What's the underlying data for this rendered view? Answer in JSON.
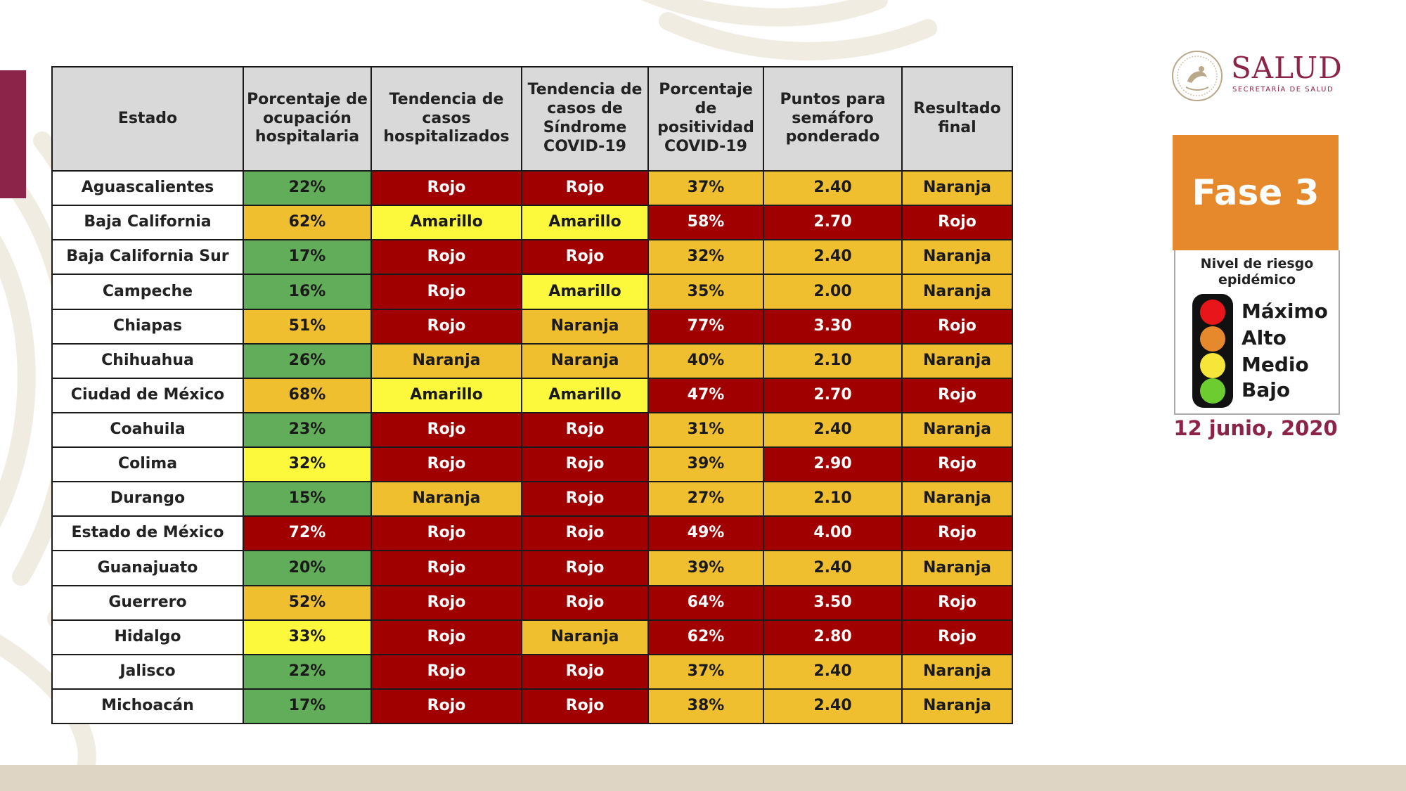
{
  "logo": {
    "title": "SALUD",
    "subtitle": "SECRETARÍA DE SALUD"
  },
  "phase": "Fase 3",
  "risk_panel": {
    "title": "Nivel de riesgo epidémico",
    "levels": [
      "Máximo",
      "Alto",
      "Medio",
      "Bajo"
    ],
    "colors": [
      "#e8161b",
      "#e6882c",
      "#f7e53a",
      "#6ccc30"
    ]
  },
  "date": "12 junio, 2020",
  "table": {
    "headers": [
      "Estado",
      "Porcentaje de ocupación hospitalaria",
      "Tendencia de casos hospitalizados",
      "Tendencia de casos de Síndrome COVID-19",
      "Porcentaje de positividad COVID-19",
      "Puntos para semáforo ponderado",
      "Resultado final"
    ],
    "colors": {
      "green": "#62ad59",
      "yellow": "#fcf83c",
      "orange": "#f0bf30",
      "red": "#a00000"
    },
    "rows": [
      {
        "estado": "Aguascalientes",
        "ocupacion": "22%",
        "c_ocu": "green",
        "hosp": "Rojo",
        "c_hosp": "red",
        "sind": "Rojo",
        "c_sind": "red",
        "posit": "37%",
        "c_pos": "orange",
        "puntos": "2.40",
        "c_pts": "orange",
        "final": "Naranja",
        "c_fin": "orange"
      },
      {
        "estado": "Baja California",
        "ocupacion": "62%",
        "c_ocu": "orange",
        "hosp": "Amarillo",
        "c_hosp": "yellow",
        "sind": "Amarillo",
        "c_sind": "yellow",
        "posit": "58%",
        "c_pos": "red",
        "puntos": "2.70",
        "c_pts": "red",
        "final": "Rojo",
        "c_fin": "red"
      },
      {
        "estado": "Baja California Sur",
        "ocupacion": "17%",
        "c_ocu": "green",
        "hosp": "Rojo",
        "c_hosp": "red",
        "sind": "Rojo",
        "c_sind": "red",
        "posit": "32%",
        "c_pos": "orange",
        "puntos": "2.40",
        "c_pts": "orange",
        "final": "Naranja",
        "c_fin": "orange"
      },
      {
        "estado": "Campeche",
        "ocupacion": "16%",
        "c_ocu": "green",
        "hosp": "Rojo",
        "c_hosp": "red",
        "sind": "Amarillo",
        "c_sind": "yellow",
        "posit": "35%",
        "c_pos": "orange",
        "puntos": "2.00",
        "c_pts": "orange",
        "final": "Naranja",
        "c_fin": "orange"
      },
      {
        "estado": "Chiapas",
        "ocupacion": "51%",
        "c_ocu": "orange",
        "hosp": "Rojo",
        "c_hosp": "red",
        "sind": "Naranja",
        "c_sind": "orange",
        "posit": "77%",
        "c_pos": "red",
        "puntos": "3.30",
        "c_pts": "red",
        "final": "Rojo",
        "c_fin": "red"
      },
      {
        "estado": "Chihuahua",
        "ocupacion": "26%",
        "c_ocu": "green",
        "hosp": "Naranja",
        "c_hosp": "orange",
        "sind": "Naranja",
        "c_sind": "orange",
        "posit": "40%",
        "c_pos": "orange",
        "puntos": "2.10",
        "c_pts": "orange",
        "final": "Naranja",
        "c_fin": "orange"
      },
      {
        "estado": "Ciudad de México",
        "ocupacion": "68%",
        "c_ocu": "orange",
        "hosp": "Amarillo",
        "c_hosp": "yellow",
        "sind": "Amarillo",
        "c_sind": "yellow",
        "posit": "47%",
        "c_pos": "red",
        "puntos": "2.70",
        "c_pts": "red",
        "final": "Rojo",
        "c_fin": "red"
      },
      {
        "estado": "Coahuila",
        "ocupacion": "23%",
        "c_ocu": "green",
        "hosp": "Rojo",
        "c_hosp": "red",
        "sind": "Rojo",
        "c_sind": "red",
        "posit": "31%",
        "c_pos": "orange",
        "puntos": "2.40",
        "c_pts": "orange",
        "final": "Naranja",
        "c_fin": "orange"
      },
      {
        "estado": "Colima",
        "ocupacion": "32%",
        "c_ocu": "yellow",
        "hosp": "Rojo",
        "c_hosp": "red",
        "sind": "Rojo",
        "c_sind": "red",
        "posit": "39%",
        "c_pos": "orange",
        "puntos": "2.90",
        "c_pts": "red",
        "final": "Rojo",
        "c_fin": "red"
      },
      {
        "estado": "Durango",
        "ocupacion": "15%",
        "c_ocu": "green",
        "hosp": "Naranja",
        "c_hosp": "orange",
        "sind": "Rojo",
        "c_sind": "red",
        "posit": "27%",
        "c_pos": "orange",
        "puntos": "2.10",
        "c_pts": "orange",
        "final": "Naranja",
        "c_fin": "orange"
      },
      {
        "estado": "Estado de México",
        "ocupacion": "72%",
        "c_ocu": "red",
        "hosp": "Rojo",
        "c_hosp": "red",
        "sind": "Rojo",
        "c_sind": "red",
        "posit": "49%",
        "c_pos": "red",
        "puntos": "4.00",
        "c_pts": "red",
        "final": "Rojo",
        "c_fin": "red"
      },
      {
        "estado": "Guanajuato",
        "ocupacion": "20%",
        "c_ocu": "green",
        "hosp": "Rojo",
        "c_hosp": "red",
        "sind": "Rojo",
        "c_sind": "red",
        "posit": "39%",
        "c_pos": "orange",
        "puntos": "2.40",
        "c_pts": "orange",
        "final": "Naranja",
        "c_fin": "orange"
      },
      {
        "estado": "Guerrero",
        "ocupacion": "52%",
        "c_ocu": "orange",
        "hosp": "Rojo",
        "c_hosp": "red",
        "sind": "Rojo",
        "c_sind": "red",
        "posit": "64%",
        "c_pos": "red",
        "puntos": "3.50",
        "c_pts": "red",
        "final": "Rojo",
        "c_fin": "red"
      },
      {
        "estado": "Hidalgo",
        "ocupacion": "33%",
        "c_ocu": "yellow",
        "hosp": "Rojo",
        "c_hosp": "red",
        "sind": "Naranja",
        "c_sind": "orange",
        "posit": "62%",
        "c_pos": "red",
        "puntos": "2.80",
        "c_pts": "red",
        "final": "Rojo",
        "c_fin": "red"
      },
      {
        "estado": "Jalisco",
        "ocupacion": "22%",
        "c_ocu": "green",
        "hosp": "Rojo",
        "c_hosp": "red",
        "sind": "Rojo",
        "c_sind": "red",
        "posit": "37%",
        "c_pos": "orange",
        "puntos": "2.40",
        "c_pts": "orange",
        "final": "Naranja",
        "c_fin": "orange"
      },
      {
        "estado": "Michoacán",
        "ocupacion": "17%",
        "c_ocu": "green",
        "hosp": "Rojo",
        "c_hosp": "red",
        "sind": "Rojo",
        "c_sind": "red",
        "posit": "38%",
        "c_pos": "orange",
        "puntos": "2.40",
        "c_pts": "orange",
        "final": "Naranja",
        "c_fin": "orange"
      }
    ]
  }
}
